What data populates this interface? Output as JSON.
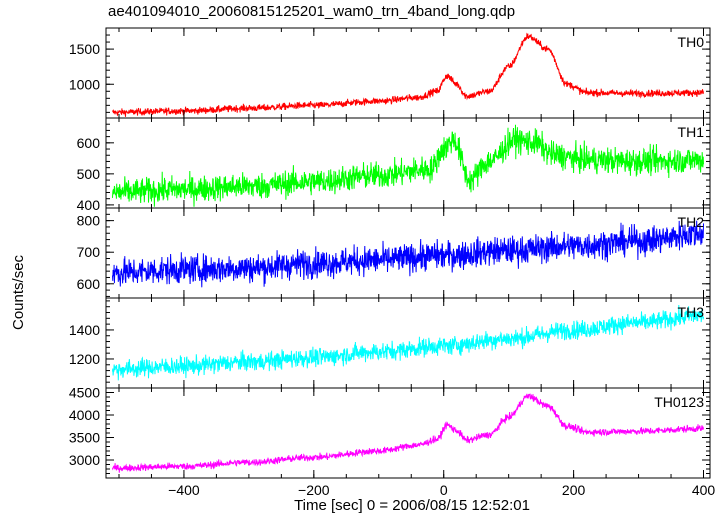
{
  "chart_data": {
    "type": "line",
    "title": "ae401094010_20060815125201_wam0_trn_4band_long.qdp",
    "xlabel": "Time [sec] 0 = 2006/08/15 12:52:01",
    "ylabel": "Counts/sec",
    "xlim": [
      -520,
      410
    ],
    "x_ticks": [
      -400,
      -200,
      0,
      200,
      400
    ],
    "x_tick_labels": [
      "−400",
      "−200",
      "0",
      "200",
      "400"
    ],
    "grid": false,
    "panels": [
      {
        "name": "TH0",
        "color": "#ff0000",
        "ylim": [
          520,
          1800
        ],
        "y_ticks": [
          1000,
          1500
        ],
        "y_tick_labels": [
          "1000",
          "1500"
        ],
        "noise": 35,
        "profile": [
          [
            -510,
            600
          ],
          [
            -400,
            620
          ],
          [
            -300,
            660
          ],
          [
            -200,
            700
          ],
          [
            -100,
            760
          ],
          [
            -40,
            810
          ],
          [
            -10,
            900
          ],
          [
            5,
            1120
          ],
          [
            20,
            1000
          ],
          [
            35,
            830
          ],
          [
            70,
            900
          ],
          [
            100,
            1250
          ],
          [
            130,
            1680
          ],
          [
            160,
            1500
          ],
          [
            190,
            1000
          ],
          [
            220,
            880
          ],
          [
            300,
            870
          ],
          [
            400,
            880
          ]
        ]
      },
      {
        "name": "TH1",
        "color": "#00ff00",
        "ylim": [
          390,
          680
        ],
        "y_ticks": [
          400,
          500,
          600
        ],
        "y_tick_labels": [
          "400",
          "500",
          "600"
        ],
        "noise": 30,
        "profile": [
          [
            -510,
            440
          ],
          [
            -400,
            450
          ],
          [
            -300,
            460
          ],
          [
            -200,
            475
          ],
          [
            -100,
            495
          ],
          [
            -20,
            515
          ],
          [
            0,
            580
          ],
          [
            15,
            610
          ],
          [
            40,
            480
          ],
          [
            70,
            540
          ],
          [
            110,
            610
          ],
          [
            140,
            600
          ],
          [
            170,
            560
          ],
          [
            220,
            545
          ],
          [
            300,
            540
          ],
          [
            400,
            545
          ]
        ]
      },
      {
        "name": "TH2",
        "color": "#0000ff",
        "ylim": [
          555,
          840
        ],
        "y_ticks": [
          600,
          700,
          800
        ],
        "y_tick_labels": [
          "600",
          "700",
          "800"
        ],
        "noise": 32,
        "profile": [
          [
            -510,
            635
          ],
          [
            -400,
            645
          ],
          [
            -300,
            650
          ],
          [
            -200,
            665
          ],
          [
            -100,
            675
          ],
          [
            0,
            690
          ],
          [
            100,
            705
          ],
          [
            200,
            720
          ],
          [
            300,
            735
          ],
          [
            400,
            760
          ]
        ]
      },
      {
        "name": "TH3",
        "color": "#00ffff",
        "ylim": [
          1000,
          1620
        ],
        "y_ticks": [
          1200,
          1400
        ],
        "y_tick_labels": [
          "1200",
          "1400"
        ],
        "noise": 45,
        "profile": [
          [
            -510,
            1130
          ],
          [
            -400,
            1150
          ],
          [
            -300,
            1180
          ],
          [
            -200,
            1210
          ],
          [
            -100,
            1250
          ],
          [
            0,
            1290
          ],
          [
            100,
            1340
          ],
          [
            200,
            1400
          ],
          [
            300,
            1450
          ],
          [
            400,
            1500
          ]
        ]
      },
      {
        "name": "TH0123",
        "color": "#ff00ff",
        "ylim": [
          2600,
          4600
        ],
        "y_ticks": [
          3000,
          3500,
          4000,
          4500
        ],
        "y_tick_labels": [
          "3000",
          "3500",
          "4000",
          "4500"
        ],
        "noise": 55,
        "profile": [
          [
            -510,
            2820
          ],
          [
            -400,
            2860
          ],
          [
            -300,
            2950
          ],
          [
            -200,
            3060
          ],
          [
            -100,
            3200
          ],
          [
            -40,
            3330
          ],
          [
            -10,
            3460
          ],
          [
            5,
            3780
          ],
          [
            20,
            3650
          ],
          [
            35,
            3440
          ],
          [
            70,
            3560
          ],
          [
            100,
            3950
          ],
          [
            130,
            4420
          ],
          [
            160,
            4200
          ],
          [
            190,
            3750
          ],
          [
            220,
            3620
          ],
          [
            300,
            3640
          ],
          [
            400,
            3700
          ]
        ]
      }
    ]
  }
}
